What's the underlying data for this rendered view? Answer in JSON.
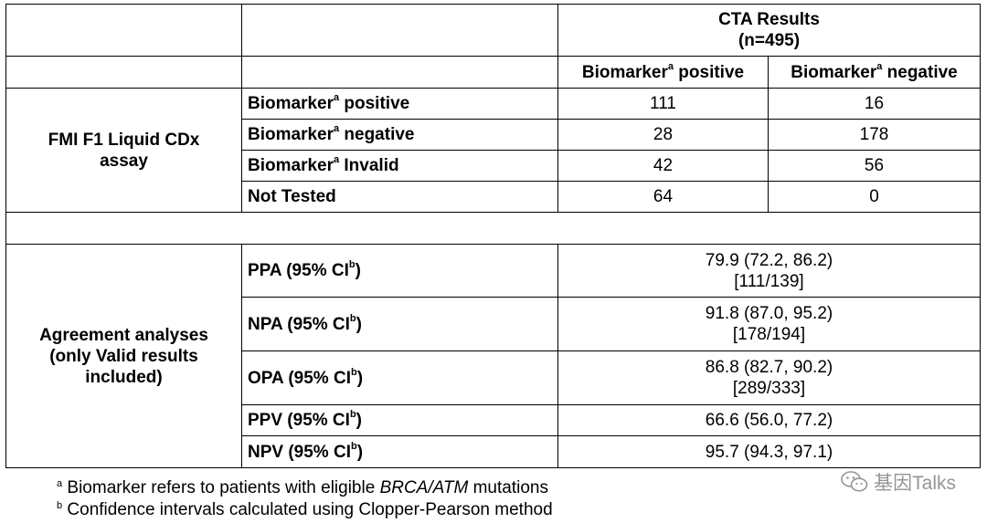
{
  "header": {
    "title_line1": "CTA Results",
    "title_line2": "(n=495)",
    "col_positive": "Biomarker",
    "col_negative": "Biomarker",
    "col_positive_suffix": " positive",
    "col_negative_suffix": " negative",
    "sup_a": "a"
  },
  "assay": {
    "label_line1": "FMI F1 Liquid CDx",
    "label_line2": "assay",
    "rows": [
      {
        "label": "Biomarker",
        "sup": "a",
        "suffix": " positive",
        "pos": "111",
        "neg": "16"
      },
      {
        "label": "Biomarker",
        "sup": "a",
        "suffix": " negative",
        "pos": "28",
        "neg": "178"
      },
      {
        "label": "Biomarker",
        "sup": "a",
        "suffix": " Invalid",
        "pos": "42",
        "neg": "56"
      },
      {
        "label": "Not Tested",
        "sup": "",
        "suffix": "",
        "pos": "64",
        "neg": "0"
      }
    ]
  },
  "agreement": {
    "label_line1": "Agreement analyses",
    "label_line2": "(only Valid results",
    "label_line3": "included)",
    "rows": [
      {
        "label": "PPA (95% CI",
        "sup": "b",
        "suffix": ")",
        "value": "79.9 (72.2, 86.2)",
        "fraction": "[111/139]"
      },
      {
        "label": "NPA (95% CI",
        "sup": "b",
        "suffix": ")",
        "value": "91.8 (87.0, 95.2)",
        "fraction": "[178/194]"
      },
      {
        "label": "OPA (95% CI",
        "sup": "b",
        "suffix": ")",
        "value": "86.8 (82.7, 90.2)",
        "fraction": "[289/333]"
      },
      {
        "label": "PPV (95% CI",
        "sup": "b",
        "suffix": ")",
        "value": "66.6 (56.0, 77.2)",
        "fraction": ""
      },
      {
        "label": "NPV (95% CI",
        "sup": "b",
        "suffix": ")",
        "value": "95.7 (94.3, 97.1)",
        "fraction": ""
      }
    ]
  },
  "footnotes": {
    "a_sup": "a",
    "a_text_before": " Biomarker refers to patients with eligible ",
    "a_text_italic": "BRCA/ATM",
    "a_text_after": " mutations",
    "b_sup": "b",
    "b_text": " Confidence intervals calculated using Clopper-Pearson method"
  },
  "watermark": {
    "text": "基因Talks",
    "icon": "wechat-icon"
  }
}
